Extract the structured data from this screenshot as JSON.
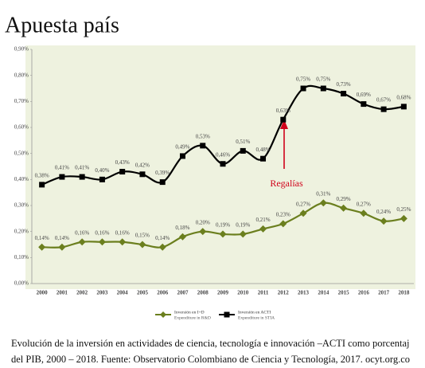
{
  "chart_data": {
    "type": "line",
    "title": "Apuesta país",
    "categories": [
      "2000",
      "2001",
      "2002",
      "2003",
      "2004",
      "2005",
      "2006",
      "2007",
      "2008",
      "2009",
      "2010",
      "2011",
      "2012",
      "2013",
      "2014",
      "2015",
      "2016",
      "2017",
      "2018"
    ],
    "series": [
      {
        "name": "Inversión en I+D",
        "subname": "Expenditure in R&D",
        "color": "#6b7f1e",
        "marker": "diamond",
        "values": [
          0.14,
          0.14,
          0.16,
          0.16,
          0.16,
          0.15,
          0.14,
          0.18,
          0.2,
          0.19,
          0.19,
          0.21,
          0.23,
          0.27,
          0.31,
          0.29,
          0.27,
          0.24,
          0.25
        ],
        "value_labels": [
          "0,14%",
          "0,14%",
          "0,16%",
          "0,16%",
          "0,16%",
          "0,15%",
          "0,14%",
          "0,18%",
          "0,20%",
          "0,19%",
          "0,19%",
          "0,21%",
          "0,23%",
          "0,27%",
          "0,31%",
          "0,29%",
          "0,27%",
          "0,24%",
          "0,25%"
        ]
      },
      {
        "name": "Inversión en ACTI",
        "subname": "Expenditure in STIA",
        "color": "#000000",
        "marker": "square",
        "values": [
          0.38,
          0.41,
          0.41,
          0.4,
          0.43,
          0.42,
          0.39,
          0.49,
          0.53,
          0.46,
          0.51,
          0.48,
          0.63,
          0.75,
          0.75,
          0.73,
          0.69,
          0.67,
          0.68
        ],
        "value_labels": [
          "0,38%",
          "0,41%",
          "0,41%",
          "0,40%",
          "0,43%",
          "0,42%",
          "0,39%",
          "0,49%",
          "0,53%",
          "0,46%",
          "0,51%",
          "0,48%",
          "0,63%",
          "0,75%",
          "0,75%",
          "0,73%",
          "0,69%",
          "0,67%",
          "0,68%"
        ]
      }
    ],
    "ylim": [
      0,
      0.9
    ],
    "yticks": [
      {
        "value": 0,
        "label": "0,00%"
      },
      {
        "value": 0.1,
        "label": "0,10%"
      },
      {
        "value": 0.2,
        "label": "0,20%"
      },
      {
        "value": 0.3,
        "label": "0,30%"
      },
      {
        "value": 0.4,
        "label": "0,40%"
      },
      {
        "value": 0.5,
        "label": "0,50%"
      },
      {
        "value": 0.6,
        "label": "0,60%"
      },
      {
        "value": 0.7,
        "label": "0,70%"
      },
      {
        "value": 0.8,
        "label": "0,80%"
      },
      {
        "value": 0.9,
        "label": "0,90%"
      }
    ],
    "grid": false,
    "annotation": "Regalías",
    "caption": [
      "Evolución de la inversión en actividades de ciencia, tecnología e innovación –ACTI como porcentaj",
      "del PIB, 2000 – 2018. Fuente: Observatorio Colombiano de Ciencia y Tecnología, 2017. ocyt.org.co"
    ]
  }
}
